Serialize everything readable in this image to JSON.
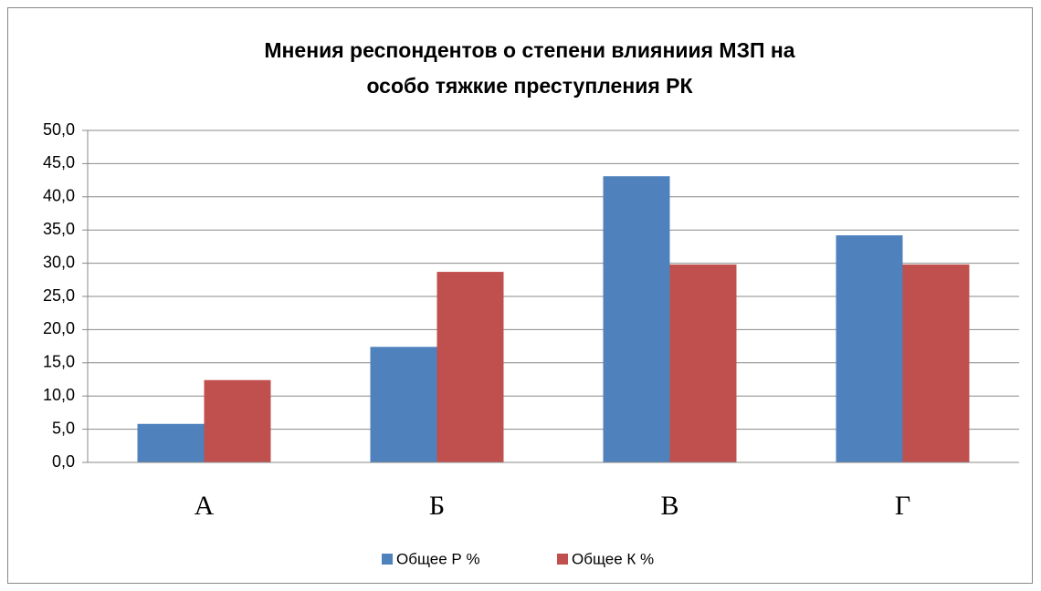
{
  "chart_data": {
    "type": "bar",
    "title": [
      "Мнения респондентов о степени влияниия МЗП на",
      "особо тяжкие преступления РК"
    ],
    "categories": [
      "А",
      "Б",
      "В",
      "Г"
    ],
    "series": [
      {
        "name": "Общее Р %",
        "color": "#4f81bd",
        "values": [
          5.8,
          17.4,
          43.1,
          34.2
        ]
      },
      {
        "name": "Общее К %",
        "color": "#c0504d",
        "values": [
          12.4,
          28.7,
          29.8,
          29.8
        ]
      }
    ],
    "ylim": [
      0,
      50
    ],
    "yticks": [
      {
        "value": 0,
        "label": "0,0"
      },
      {
        "value": 5,
        "label": "5,0"
      },
      {
        "value": 10,
        "label": "10,0"
      },
      {
        "value": 15,
        "label": "15,0"
      },
      {
        "value": 20,
        "label": "20,0"
      },
      {
        "value": 25,
        "label": "25,0"
      },
      {
        "value": 30,
        "label": "30,0"
      },
      {
        "value": 35,
        "label": "35,0"
      },
      {
        "value": 40,
        "label": "40,0"
      },
      {
        "value": 45,
        "label": "45,0"
      },
      {
        "value": 50,
        "label": "50,0"
      }
    ],
    "grid": true,
    "legend": "bottom"
  }
}
